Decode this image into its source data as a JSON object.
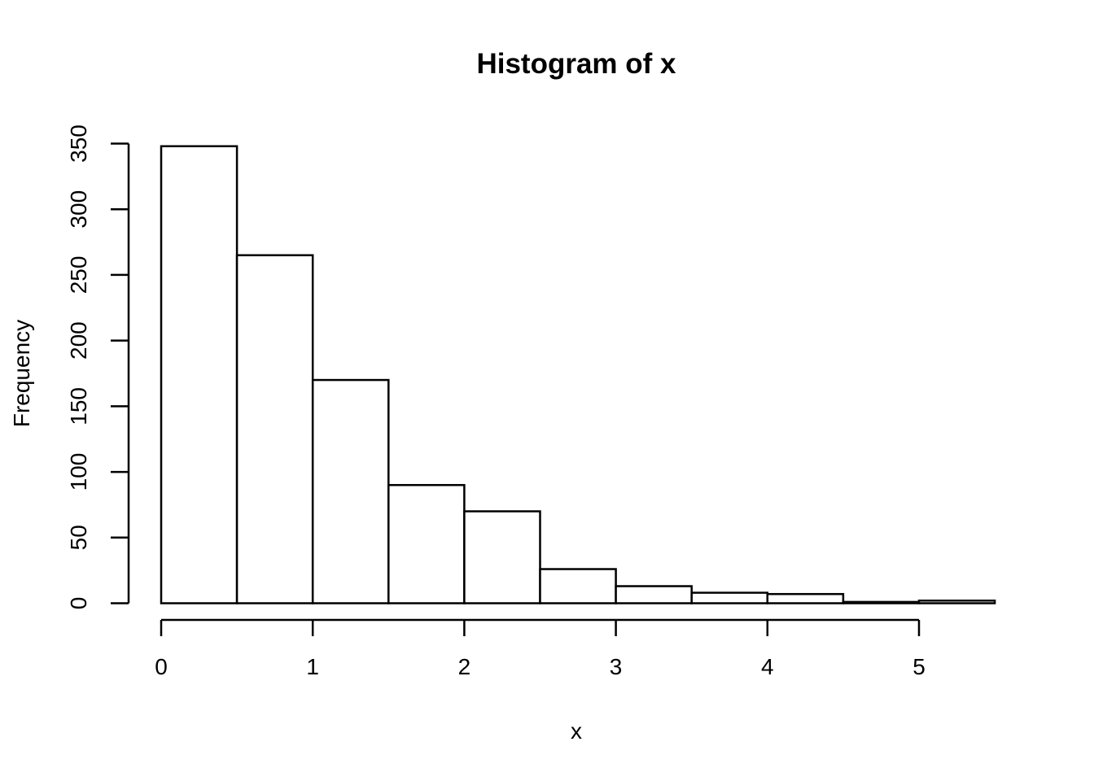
{
  "figure": {
    "background_color": "#ffffff",
    "foreground_color": "#000000"
  },
  "chart_data": {
    "type": "bar",
    "chart_kind": "histogram",
    "title": "Histogram of x",
    "xlabel": "x",
    "ylabel": "Frequency",
    "breaks": [
      0,
      0.5,
      1,
      1.5,
      2,
      2.5,
      3,
      3.5,
      4,
      4.5,
      5,
      5.5
    ],
    "counts": [
      348,
      265,
      170,
      90,
      70,
      26,
      13,
      8,
      7,
      1,
      2
    ],
    "x_ticks": [
      0,
      1,
      2,
      3,
      4,
      5
    ],
    "y_ticks": [
      0,
      50,
      100,
      150,
      200,
      250,
      300,
      350
    ],
    "xlim": [
      0,
      5.5
    ],
    "ylim": [
      0,
      350
    ],
    "bar_fill": "#ffffff",
    "bar_stroke": "#000000",
    "grid": false,
    "legend": false
  }
}
